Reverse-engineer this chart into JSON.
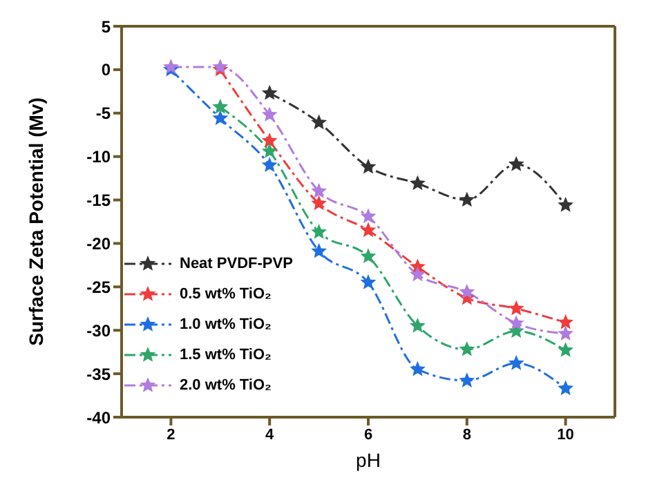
{
  "chart_data": {
    "type": "line",
    "xlabel": "pH",
    "ylabel": "Surface Zeta Potential (Mv)",
    "x": [
      2,
      3,
      4,
      5,
      6,
      7,
      8,
      9,
      10
    ],
    "series": [
      {
        "name": "Neat PVDF-PVP",
        "color": "#333333",
        "values": [
          null,
          null,
          -2.7,
          -6.1,
          -11.2,
          -13.1,
          -15.0,
          -10.9,
          -15.6
        ]
      },
      {
        "name": "0.5 wt% TiO₂",
        "color": "#f03c3c",
        "values": [
          null,
          0,
          -8.2,
          -15.4,
          -18.5,
          -22.7,
          -26.3,
          -27.5,
          -29.1
        ]
      },
      {
        "name": "1.0 wt% TiO₂",
        "color": "#1f6fe0",
        "values": [
          0,
          -5.6,
          -11.0,
          -20.9,
          -24.5,
          -34.5,
          -35.8,
          -33.8,
          -36.7
        ]
      },
      {
        "name": "1.5 wt% TiO₂",
        "color": "#2ea66a",
        "values": [
          null,
          -4.3,
          -9.4,
          -18.7,
          -21.5,
          -29.5,
          -32.2,
          -30.1,
          -32.3
        ]
      },
      {
        "name": "2.0 wt% TiO₂",
        "color": "#b07ce0",
        "values": [
          0.3,
          0.3,
          -5.2,
          -14.0,
          -16.9,
          -23.6,
          -25.6,
          -29.2,
          -30.4
        ]
      }
    ],
    "xlim": [
      1,
      11
    ],
    "xticks": [
      2,
      4,
      6,
      8,
      10
    ],
    "ylim": [
      -40,
      5
    ],
    "yticks": [
      5,
      0,
      -5,
      -10,
      -15,
      -20,
      -25,
      -30,
      -35,
      -40
    ],
    "grid": false,
    "legend": "left",
    "marker": "star",
    "line_style": "dashed"
  }
}
